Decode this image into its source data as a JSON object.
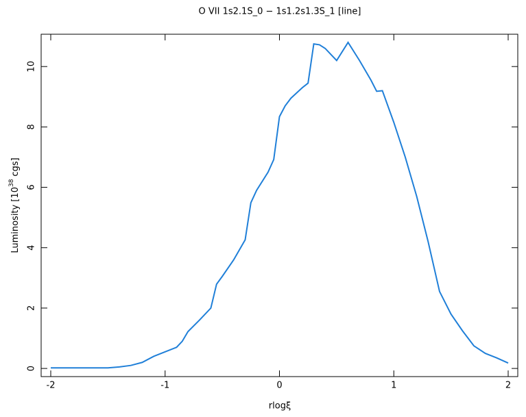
{
  "chart_data": {
    "type": "line",
    "title": "O VII 1s2.1S_0 − 1s1.2s1.3S_1 [line]",
    "xlabel": "rlogξ",
    "ylabel": "Luminosity [10",
    "ylabel_sup": "38",
    "ylabel_end": "cgs]",
    "x": [
      -2,
      -1.9,
      -1.8,
      -1.7,
      -1.6,
      -1.5,
      -1.4,
      -1.3,
      -1.2,
      -1.1,
      -1.0,
      -0.9,
      -0.85,
      -0.8,
      -0.7,
      -0.6,
      -0.55,
      -0.5,
      -0.4,
      -0.3,
      -0.25,
      -0.2,
      -0.1,
      -0.05,
      0,
      0.05,
      0.1,
      0.2,
      0.25,
      0.3,
      0.35,
      0.4,
      0.45,
      0.5,
      0.6,
      0.7,
      0.8,
      0.85,
      0.9,
      1.0,
      1.1,
      1.2,
      1.3,
      1.4,
      1.5,
      1.6,
      1.7,
      1.8,
      1.9,
      2.0
    ],
    "series": [
      {
        "name": "line",
        "color": "#1f7fd8",
        "values": [
          0.02,
          0.02,
          0.02,
          0.02,
          0.02,
          0.02,
          0.05,
          0.1,
          0.2,
          0.4,
          0.55,
          0.7,
          0.9,
          1.22,
          1.6,
          2.0,
          2.79,
          3.05,
          3.6,
          4.26,
          5.49,
          5.9,
          6.5,
          6.92,
          8.34,
          8.7,
          8.95,
          9.3,
          9.45,
          10.75,
          10.72,
          10.6,
          10.4,
          10.2,
          10.8,
          10.2,
          9.55,
          9.18,
          9.2,
          8.15,
          7.0,
          5.7,
          4.2,
          2.55,
          1.8,
          1.25,
          0.75,
          0.5,
          0.35,
          0.18
        ]
      }
    ],
    "xlim": [
      -2.084,
      2.084
    ],
    "ylim": [
      -0.27,
      11.07
    ],
    "xticks": [
      -2,
      -1,
      0,
      1,
      2
    ],
    "yticks": [
      0,
      2,
      4,
      6,
      8,
      10
    ],
    "grid": false
  }
}
